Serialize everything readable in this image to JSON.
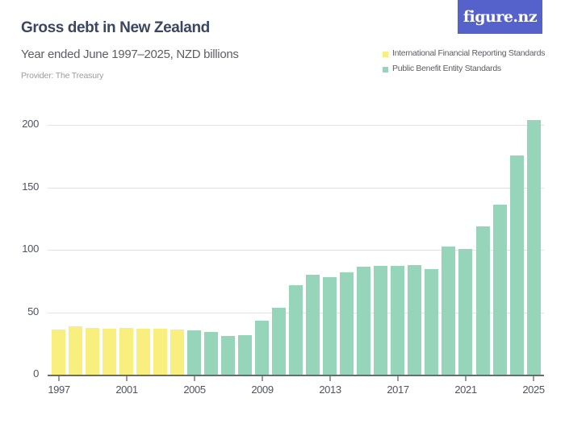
{
  "header": {
    "title": "Gross debt in New Zealand",
    "subtitle": "Year ended June 1997–2025, NZD billions",
    "provider": "Provider: The Treasury",
    "logo_text": "figure.nz"
  },
  "legend": {
    "items": [
      {
        "label": "International Financial Reporting Standards",
        "color": "#f9ef7e"
      },
      {
        "label": "Public Benefit Entity Standards",
        "color": "#96d5b9"
      }
    ]
  },
  "colors": {
    "ifrs": "#f9ef7e",
    "pbe": "#96d5b9",
    "logo_bg": "#5562cc",
    "title": "#3b4660"
  },
  "chart_data": {
    "type": "bar",
    "title": "Gross debt in New Zealand",
    "subtitle": "Year ended June 1997–2025, NZD billions",
    "xlabel": "",
    "ylabel": "NZD billions",
    "ylim": [
      0,
      210
    ],
    "yticks": [
      0,
      50,
      100,
      150,
      200
    ],
    "xticks": [
      "1997",
      "2001",
      "2005",
      "2009",
      "2013",
      "2017",
      "2021",
      "2025"
    ],
    "grid": true,
    "legend_position": "top-right",
    "categories": [
      "1997",
      "1998",
      "1999",
      "2000",
      "2001",
      "2002",
      "2003",
      "2004",
      "2005",
      "2006",
      "2007",
      "2008",
      "2009",
      "2010",
      "2011",
      "2012",
      "2013",
      "2014",
      "2015",
      "2016",
      "2017",
      "2018",
      "2019",
      "2020",
      "2021",
      "2022",
      "2023",
      "2024",
      "2025"
    ],
    "series": [
      {
        "name": "International Financial Reporting Standards",
        "color": "#f9ef7e",
        "values": [
          36,
          39,
          37.5,
          37,
          37.5,
          37,
          37,
          36,
          null,
          null,
          null,
          null,
          null,
          null,
          null,
          null,
          null,
          null,
          null,
          null,
          null,
          null,
          null,
          null,
          null,
          null,
          null,
          null,
          null
        ]
      },
      {
        "name": "Public Benefit Entity Standards",
        "color": "#96d5b9",
        "values": [
          null,
          null,
          null,
          null,
          null,
          null,
          null,
          null,
          35.5,
          34,
          31,
          31.5,
          43,
          53.5,
          72,
          80,
          78,
          82,
          86.5,
          87,
          87,
          88,
          84.5,
          102.5,
          100.5,
          119,
          136,
          176,
          204
        ]
      }
    ]
  }
}
